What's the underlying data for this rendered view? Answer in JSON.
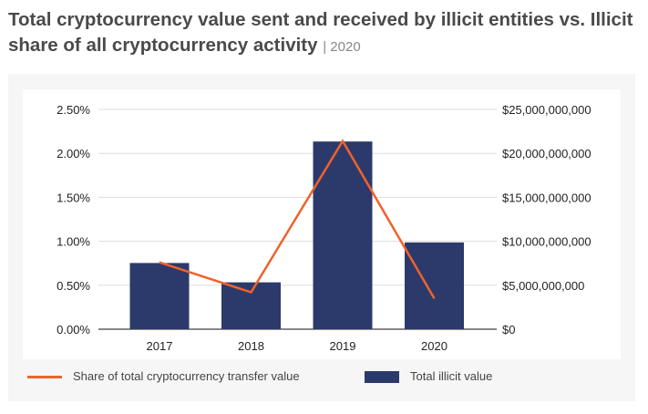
{
  "title": "Total cryptocurrency value sent and received by illicit entities vs. Illicit share of all cryptocurrency activity",
  "title_year": "| 2020",
  "chart_data": {
    "type": "bar+line",
    "categories": [
      "2017",
      "2018",
      "2019",
      "2020"
    ],
    "series": [
      {
        "name": "Total illicit value",
        "type": "bar",
        "axis": "right",
        "values": [
          7530000000,
          5330000000,
          21350000000,
          9870000000
        ],
        "color": "#2b3a6b"
      },
      {
        "name": "Share of total cryptocurrency transfer value",
        "type": "line",
        "axis": "left",
        "values": [
          0.76,
          0.42,
          2.14,
          0.35
        ],
        "color": "#f0622b"
      }
    ],
    "left_axis": {
      "ylim": [
        0,
        2.5
      ],
      "ticks": [
        "0.00%",
        "0.50%",
        "1.00%",
        "1.50%",
        "2.00%",
        "2.50%"
      ]
    },
    "right_axis": {
      "ylim": [
        0,
        25000000000
      ],
      "ticks": [
        "$0",
        "$5,000,000,000",
        "$10,000,000,000",
        "$15,000,000,000",
        "$20,000,000,000",
        "$25,000,000,000"
      ]
    },
    "grid": true,
    "legend": "bottom"
  }
}
